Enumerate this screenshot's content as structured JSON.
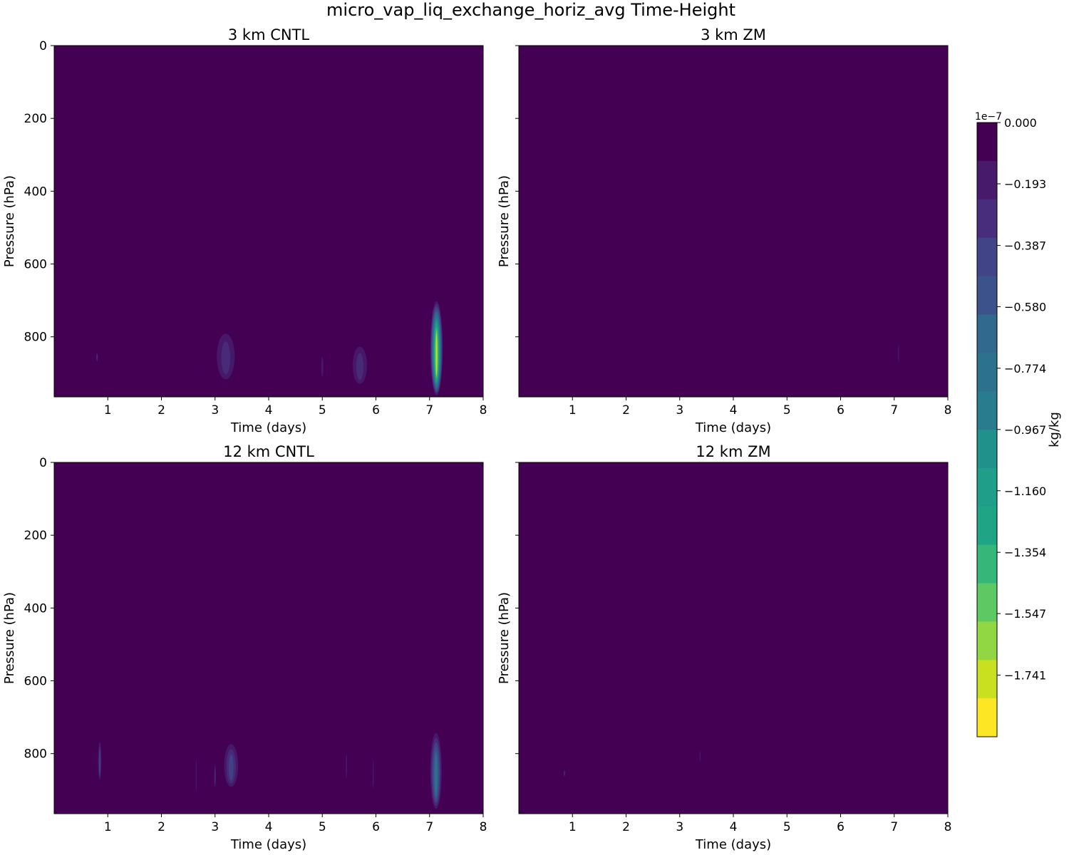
{
  "figure": {
    "title": "micro_vap_liq_exchange_horiz_avg Time-Height"
  },
  "colors": {
    "background": "#440154",
    "palette": [
      "#fde725",
      "#c8e020",
      "#90d743",
      "#5ec962",
      "#35b779",
      "#20a486",
      "#1f9e89",
      "#21918c",
      "#287c8e",
      "#2c728e",
      "#31688e",
      "#3b528b",
      "#414487",
      "#472d7b",
      "#481a6c",
      "#440154"
    ]
  },
  "colorbar": {
    "label": "kg/kg",
    "offset_label": "1e−7",
    "vmin": -1.935,
    "vmax": 0.0,
    "levels": 20,
    "tick_values": [
      0.0,
      -0.193,
      -0.387,
      -0.58,
      -0.774,
      -0.967,
      -1.16,
      -1.354,
      -1.547,
      -1.741
    ],
    "tick_labels": [
      "0.000",
      "−0.193",
      "−0.387",
      "−0.580",
      "−0.774",
      "−0.967",
      "−1.160",
      "−1.354",
      "−1.547",
      "−1.741"
    ]
  },
  "chart_data": [
    {
      "type": "heatmap",
      "title": "3 km CNTL",
      "xlabel": "Time (days)",
      "ylabel": "Pressure (hPa)",
      "xlim": [
        0,
        8
      ],
      "ylim": [
        0,
        965
      ],
      "x_ticks": [
        1,
        2,
        3,
        4,
        5,
        6,
        7,
        8
      ],
      "y_ticks": [
        0,
        200,
        400,
        600,
        800
      ],
      "show_y_tick_labels": true,
      "features": [
        {
          "t": 0.8,
          "p_top": 840,
          "p_bot": 870,
          "w": 0.05,
          "min": -0.35
        },
        {
          "t": 0.82,
          "p_top": 705,
          "p_bot": 735,
          "w": 0.02,
          "min": -0.12
        },
        {
          "t": 1.4,
          "p_top": 760,
          "p_bot": 780,
          "w": 0.03,
          "min": -0.12
        },
        {
          "t": 2.65,
          "p_top": 830,
          "p_bot": 950,
          "w": 0.08,
          "min": -0.12
        },
        {
          "t": 3.2,
          "p_top": 770,
          "p_bot": 930,
          "w": 0.5,
          "min": -0.35
        },
        {
          "t": 5.0,
          "p_top": 840,
          "p_bot": 920,
          "w": 0.08,
          "min": -0.15
        },
        {
          "t": 5.3,
          "p_top": 900,
          "p_bot": 930,
          "w": 0.05,
          "min": -0.1
        },
        {
          "t": 5.7,
          "p_top": 810,
          "p_bot": 940,
          "w": 0.4,
          "min": -0.3
        },
        {
          "t": 7.13,
          "p_top": 695,
          "p_bot": 965,
          "w": 0.25,
          "min": -1.7
        }
      ]
    },
    {
      "type": "heatmap",
      "title": "3 km ZM",
      "xlabel": "Time (days)",
      "ylabel": "Pressure (hPa)",
      "xlim": [
        0,
        8
      ],
      "ylim": [
        0,
        965
      ],
      "x_ticks": [
        1,
        2,
        3,
        4,
        5,
        6,
        7,
        8
      ],
      "y_ticks": [
        0,
        200,
        400,
        600,
        800
      ],
      "show_y_tick_labels": false,
      "features": [
        {
          "t": 3.45,
          "p_top": 830,
          "p_bot": 900,
          "w": 0.03,
          "min": -0.12
        },
        {
          "t": 5.88,
          "p_top": 825,
          "p_bot": 835,
          "w": 0.02,
          "min": -0.1
        },
        {
          "t": 7.08,
          "p_top": 805,
          "p_bot": 880,
          "w": 0.04,
          "min": -0.15
        }
      ]
    },
    {
      "type": "heatmap",
      "title": "12 km CNTL",
      "xlabel": "Time (days)",
      "ylabel": "Pressure (hPa)",
      "xlim": [
        0,
        8
      ],
      "ylim": [
        0,
        965
      ],
      "x_ticks": [
        1,
        2,
        3,
        4,
        5,
        6,
        7,
        8
      ],
      "y_ticks": [
        0,
        200,
        400,
        600,
        800
      ],
      "show_y_tick_labels": true,
      "features": [
        {
          "t": 0.85,
          "p_top": 755,
          "p_bot": 880,
          "w": 0.08,
          "min": -0.45
        },
        {
          "t": 1.35,
          "p_top": 690,
          "p_bot": 720,
          "w": 0.03,
          "min": -0.12
        },
        {
          "t": 2.65,
          "p_top": 790,
          "p_bot": 920,
          "w": 0.04,
          "min": -0.15
        },
        {
          "t": 3.0,
          "p_top": 820,
          "p_bot": 900,
          "w": 0.05,
          "min": -0.25
        },
        {
          "t": 3.3,
          "p_top": 760,
          "p_bot": 900,
          "w": 0.35,
          "min": -0.45
        },
        {
          "t": 5.45,
          "p_top": 780,
          "p_bot": 880,
          "w": 0.05,
          "min": -0.2
        },
        {
          "t": 5.95,
          "p_top": 795,
          "p_bot": 910,
          "w": 0.04,
          "min": -0.2
        },
        {
          "t": 7.12,
          "p_top": 730,
          "p_bot": 960,
          "w": 0.25,
          "min": -0.75
        }
      ]
    },
    {
      "type": "heatmap",
      "title": "12 km ZM",
      "xlabel": "Time (days)",
      "ylabel": "Pressure (hPa)",
      "xlim": [
        0,
        8
      ],
      "ylim": [
        0,
        965
      ],
      "x_ticks": [
        1,
        2,
        3,
        4,
        5,
        6,
        7,
        8
      ],
      "y_ticks": [
        0,
        200,
        400,
        600,
        800
      ],
      "show_y_tick_labels": false,
      "features": [
        {
          "t": 0.85,
          "p_top": 842,
          "p_bot": 865,
          "w": 0.04,
          "min": -0.25
        },
        {
          "t": 0.9,
          "p_top": 645,
          "p_bot": 670,
          "w": 0.02,
          "min": -0.1
        },
        {
          "t": 3.38,
          "p_top": 785,
          "p_bot": 825,
          "w": 0.03,
          "min": -0.15
        }
      ]
    }
  ]
}
